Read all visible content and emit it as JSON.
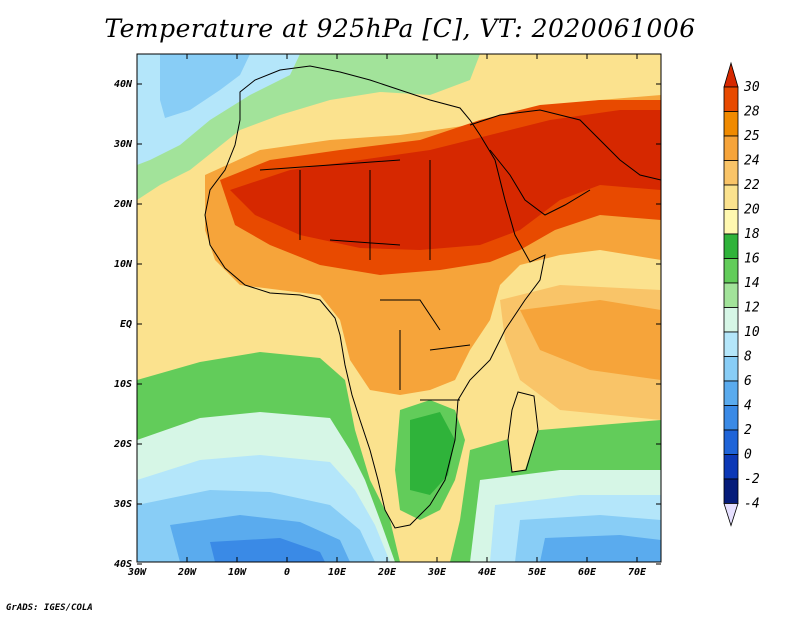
{
  "title": "Temperature at 925hPa [C], VT: 2020061006",
  "footer": "GrADS: IGES/COLA",
  "map": {
    "lon_labels": [
      "30W",
      "20W",
      "10W",
      "0",
      "10E",
      "20E",
      "30E",
      "40E",
      "50E",
      "60E",
      "70E"
    ],
    "lat_labels": [
      "40N",
      "30N",
      "20N",
      "10N",
      "EQ",
      "10S",
      "20S",
      "30S",
      "40S"
    ]
  },
  "colorbar": {
    "levels": [
      "30",
      "28",
      "25",
      "24",
      "22",
      "20",
      "18",
      "16",
      "14",
      "12",
      "10",
      "8",
      "6",
      "4",
      "2",
      "0",
      "-2",
      "-4"
    ],
    "colors": [
      "#d62800",
      "#e84a00",
      "#f08a00",
      "#f6a43a",
      "#f9c468",
      "#fbe28e",
      "#fff8b0",
      "#2fb33a",
      "#62cc5a",
      "#a2e39a",
      "#d6f6e6",
      "#b4e6fa",
      "#88cdf6",
      "#5aabee",
      "#3a8ae6",
      "#1f64d8",
      "#0c38b6",
      "#061c7a"
    ]
  }
}
